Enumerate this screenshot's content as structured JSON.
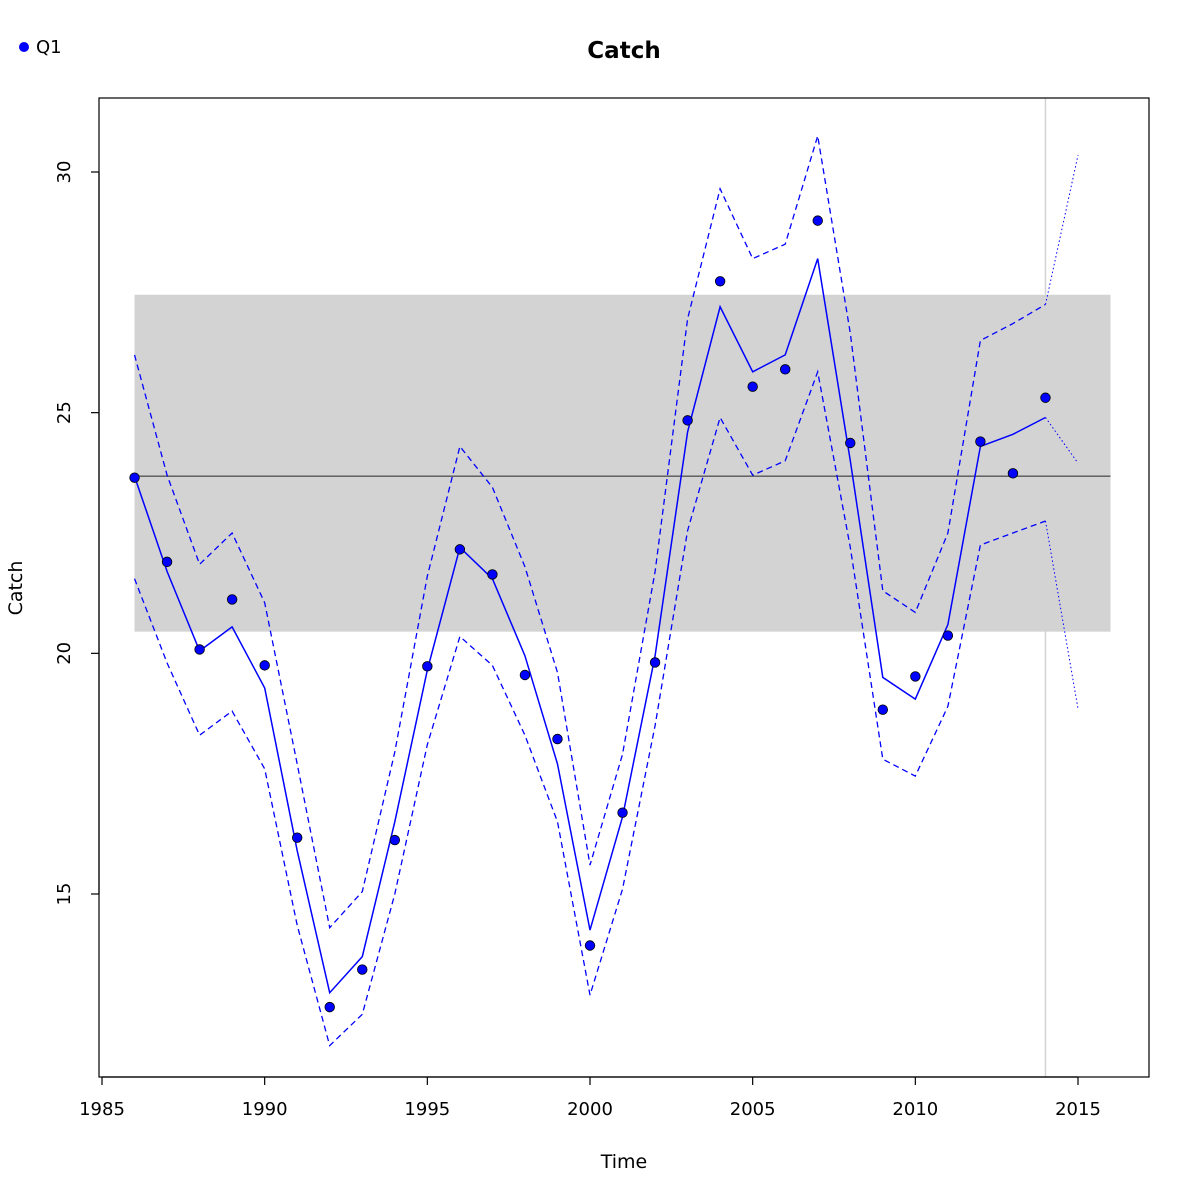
{
  "chart_data": {
    "type": "line",
    "title": "Catch",
    "xlabel": "Time",
    "ylabel": "Catch",
    "xlim": [
      1985,
      2016
    ],
    "ylim": [
      11.5,
      31.5
    ],
    "x_ticks": [
      1985,
      1990,
      1995,
      2000,
      2005,
      2010,
      2015
    ],
    "y_ticks": [
      15,
      20,
      25,
      30
    ],
    "grid": false,
    "legend": {
      "placement": "top-left",
      "entries": [
        "Q1"
      ]
    },
    "colors": {
      "series": "#0000ff",
      "band": "#d3d3d3",
      "mean_line": "#555555",
      "forecast_marker": "#d3d3d3"
    },
    "reference_band": {
      "x": [
        1986,
        2016
      ],
      "y": [
        20.45,
        27.45
      ]
    },
    "mean_line": {
      "x": [
        1986,
        2016
      ],
      "y": 23.68
    },
    "forecast_marker_x": 2014,
    "observed": {
      "name": "Q1",
      "x": [
        1986,
        1987,
        1988,
        1989,
        1990,
        1991,
        1992,
        1993,
        1994,
        1995,
        1996,
        1997,
        1998,
        1999,
        2000,
        2001,
        2002,
        2003,
        2004,
        2005,
        2006,
        2007,
        2008,
        2009,
        2010,
        2011,
        2012,
        2013,
        2014
      ],
      "y": [
        23.65,
        21.9,
        20.08,
        21.12,
        19.75,
        16.17,
        12.65,
        13.43,
        16.12,
        19.73,
        22.16,
        21.64,
        19.55,
        18.22,
        13.93,
        16.69,
        19.81,
        24.84,
        27.73,
        25.54,
        25.9,
        28.99,
        24.37,
        18.83,
        19.52,
        20.37,
        24.4,
        23.74,
        25.31
      ]
    },
    "fitted": {
      "x": [
        1986,
        1987,
        1988,
        1989,
        1990,
        1991,
        1992,
        1993,
        1994,
        1995,
        1996,
        1997,
        1998,
        1999,
        2000,
        2001,
        2002,
        2003,
        2004,
        2005,
        2006,
        2007,
        2008,
        2009,
        2010,
        2011,
        2012,
        2013,
        2014
      ],
      "y": [
        23.68,
        21.7,
        20.05,
        20.55,
        19.28,
        15.9,
        12.95,
        13.7,
        16.5,
        19.65,
        22.2,
        21.55,
        19.95,
        17.7,
        14.25,
        16.6,
        19.95,
        24.6,
        27.2,
        25.85,
        26.2,
        28.2,
        24.0,
        19.5,
        19.05,
        20.6,
        24.3,
        24.55,
        24.9
      ]
    },
    "upper_ci": {
      "x": [
        1986,
        1987,
        1988,
        1989,
        1990,
        1991,
        1992,
        1993,
        1994,
        1995,
        1996,
        1997,
        1998,
        1999,
        2000,
        2001,
        2002,
        2003,
        2004,
        2005,
        2006,
        2007,
        2008,
        2009,
        2010,
        2011,
        2012,
        2013,
        2014
      ],
      "y": [
        26.2,
        23.7,
        21.85,
        22.5,
        21.05,
        17.7,
        14.3,
        15.05,
        17.95,
        21.6,
        24.3,
        23.45,
        21.8,
        19.6,
        15.6,
        17.9,
        21.7,
        26.95,
        29.65,
        28.2,
        28.5,
        30.75,
        26.65,
        21.3,
        20.85,
        22.5,
        26.5,
        26.85,
        27.25
      ]
    },
    "lower_ci": {
      "x": [
        1986,
        1987,
        1988,
        1989,
        1990,
        1991,
        1992,
        1993,
        1994,
        1995,
        1996,
        1997,
        1998,
        1999,
        2000,
        2001,
        2002,
        2003,
        2004,
        2005,
        2006,
        2007,
        2008,
        2009,
        2010,
        2011,
        2012,
        2013,
        2014
      ],
      "y": [
        21.55,
        19.8,
        18.3,
        18.8,
        17.6,
        14.35,
        11.85,
        12.5,
        15.0,
        18.1,
        20.35,
        19.75,
        18.3,
        16.5,
        12.9,
        15.1,
        18.5,
        22.55,
        24.9,
        23.7,
        24.0,
        25.85,
        22.2,
        17.8,
        17.45,
        18.9,
        22.25,
        22.5,
        22.75
      ]
    },
    "forecast": {
      "x": [
        2014,
        2015
      ],
      "fitted": [
        24.9,
        23.95
      ],
      "upper": [
        27.25,
        30.35
      ],
      "lower": [
        22.75,
        18.85
      ]
    }
  }
}
